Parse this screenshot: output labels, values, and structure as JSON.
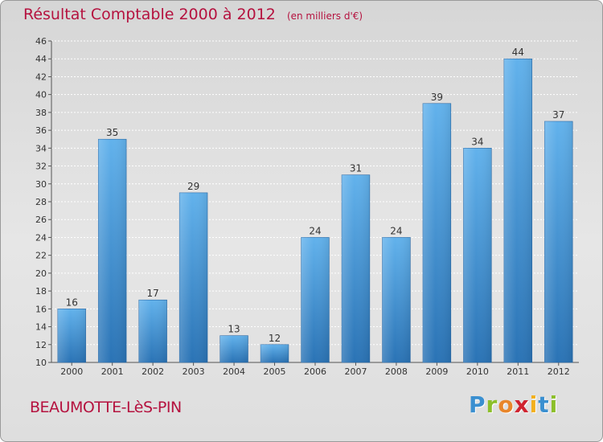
{
  "header": {
    "title": "Résultat Comptable 2000 à 2012",
    "unit": "(en milliers d'€)"
  },
  "footer": {
    "town": "BEAUMOTTE-LèS-PIN",
    "logo": [
      "P",
      "r",
      "o",
      "x",
      "i",
      "t",
      "i"
    ],
    "logo_colors": [
      "#3a8fd0",
      "#8cbf2a",
      "#e8862a",
      "#d0232f",
      "#f2b01e",
      "#3a8fd0",
      "#8cbf2a"
    ]
  },
  "chart_data": {
    "type": "bar",
    "title": "Résultat Comptable 2000 à 2012",
    "ylabel": "(en milliers d'€)",
    "xlabel": "",
    "categories": [
      "2000",
      "2001",
      "2002",
      "2003",
      "2004",
      "2005",
      "2006",
      "2007",
      "2008",
      "2009",
      "2010",
      "2011",
      "2012"
    ],
    "values": [
      16,
      35,
      17,
      29,
      13,
      12,
      24,
      31,
      24,
      39,
      34,
      44,
      37
    ],
    "ylim": [
      10,
      46
    ],
    "ytick_step": 2,
    "grid": true,
    "bar_color_top": "#62b2ec",
    "bar_color_bottom": "#2a73b5"
  }
}
